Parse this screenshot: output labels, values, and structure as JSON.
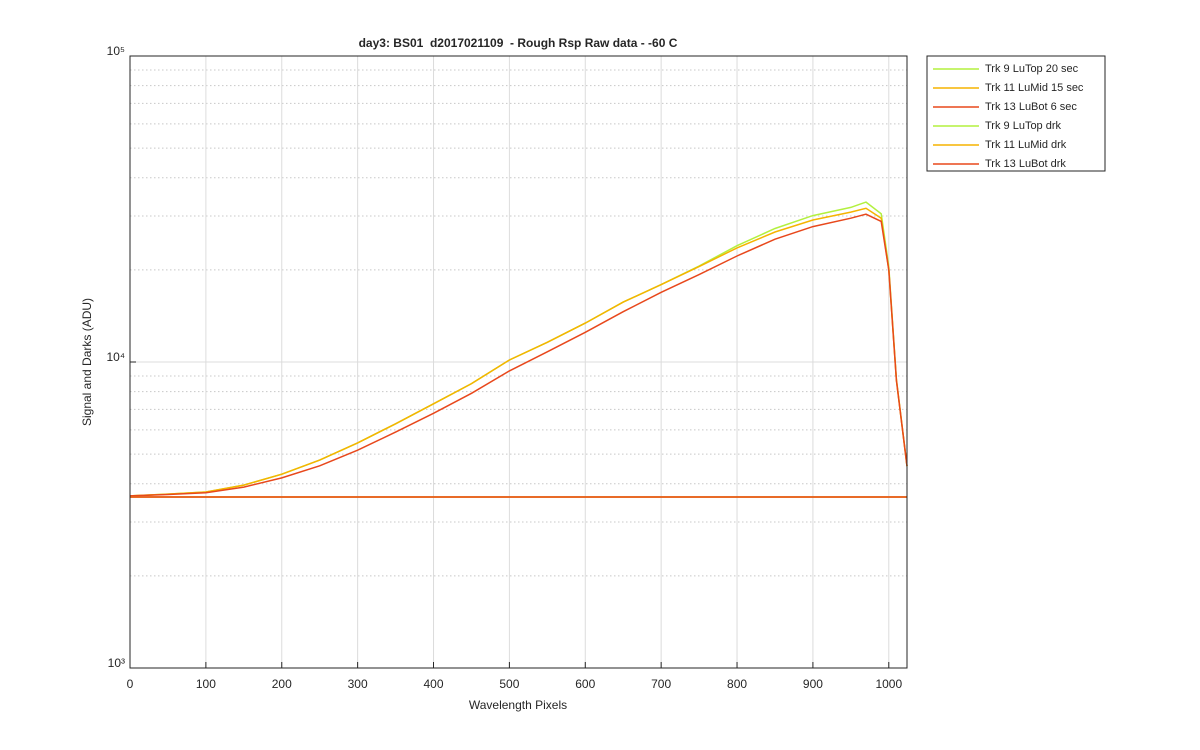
{
  "chart_data": {
    "type": "line",
    "title": "day3: BS01  d2017021109  - Rough Rsp Raw data - -60 C",
    "x_label": "Wavelength Pixels",
    "y_label": "Signal and Darks (ADU)",
    "log_y": true,
    "grid": true,
    "legend_position": "outside-right-top",
    "xlim": [
      0,
      1024
    ],
    "xticks": [
      0,
      100,
      200,
      300,
      400,
      500,
      600,
      700,
      800,
      900,
      1000
    ],
    "ylim": [
      1000,
      100000
    ],
    "yticks": [
      {
        "value": 1000,
        "label": "10³"
      },
      {
        "value": 10000,
        "label": "10⁴"
      },
      {
        "value": 100000,
        "label": "10⁵"
      }
    ],
    "yminor_ticks": [
      2000,
      3000,
      4000,
      5000,
      6000,
      7000,
      8000,
      9000,
      20000,
      30000,
      40000,
      50000,
      60000,
      70000,
      80000,
      90000
    ],
    "x": [
      0,
      50,
      100,
      150,
      200,
      250,
      300,
      350,
      400,
      450,
      500,
      550,
      600,
      650,
      700,
      750,
      800,
      850,
      900,
      950,
      970,
      990,
      1000,
      1010,
      1024
    ],
    "series": [
      {
        "name": "Trk 9 LuTop 20 sec",
        "color": "#b3f03f",
        "values": [
          3650,
          3700,
          3760,
          3960,
          4300,
          4780,
          5440,
          6280,
          7300,
          8500,
          10150,
          11600,
          13400,
          15700,
          17900,
          20600,
          24000,
          27300,
          30100,
          32000,
          33300,
          30500,
          20500,
          8800,
          4570
        ]
      },
      {
        "name": "Trk 11 LuMid 15 sec",
        "color": "#f5b400",
        "values": [
          3650,
          3700,
          3760,
          3960,
          4300,
          4780,
          5440,
          6280,
          7300,
          8500,
          10150,
          11600,
          13400,
          15700,
          17900,
          20500,
          23600,
          26600,
          29100,
          30900,
          31800,
          29500,
          20000,
          8720,
          4570
        ]
      },
      {
        "name": "Trk 13 LuBot 6 sec",
        "color": "#e8481c",
        "values": [
          3650,
          3690,
          3740,
          3900,
          4180,
          4580,
          5150,
          5900,
          6800,
          7900,
          9350,
          10800,
          12500,
          14600,
          16900,
          19300,
          22200,
          25200,
          27700,
          29500,
          30400,
          28800,
          20000,
          8720,
          4570
        ]
      },
      {
        "name": "Trk 9 LuTop drk",
        "color": "#b3f03f",
        "values": [
          3620,
          3620,
          3620,
          3620,
          3620,
          3620,
          3620,
          3620,
          3620,
          3620,
          3620,
          3620,
          3620,
          3620,
          3620,
          3620,
          3620,
          3620,
          3620,
          3620,
          3620,
          3620,
          3620,
          3620,
          3620
        ]
      },
      {
        "name": "Trk 11 LuMid drk",
        "color": "#f5b400",
        "values": [
          3620,
          3620,
          3620,
          3620,
          3620,
          3620,
          3620,
          3620,
          3620,
          3620,
          3620,
          3620,
          3620,
          3620,
          3620,
          3620,
          3620,
          3620,
          3620,
          3620,
          3620,
          3620,
          3620,
          3620,
          3620
        ]
      },
      {
        "name": "Trk 13 LuBot drk",
        "color": "#e8481c",
        "values": [
          3620,
          3620,
          3620,
          3620,
          3620,
          3620,
          3620,
          3620,
          3620,
          3620,
          3620,
          3620,
          3620,
          3620,
          3620,
          3620,
          3620,
          3620,
          3620,
          3620,
          3620,
          3620,
          3620,
          3620,
          3620
        ]
      }
    ]
  }
}
